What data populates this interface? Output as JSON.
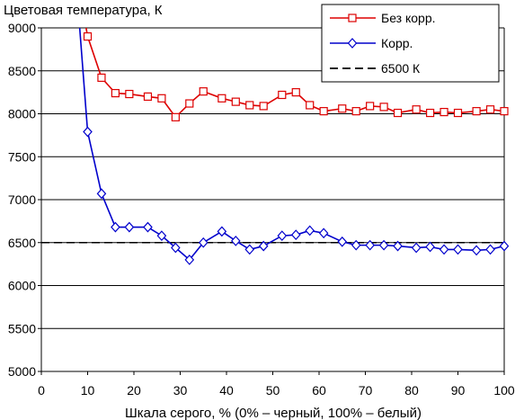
{
  "chart_data": {
    "type": "line",
    "ylabel": "Цветовая температура, К",
    "xlabel": "Шкала серого, % (0% – черный, 100% – белый)",
    "xlim": [
      0,
      100
    ],
    "ylim": [
      5000,
      9000
    ],
    "xticks": [
      "0",
      "10",
      "20",
      "30",
      "40",
      "50",
      "60",
      "70",
      "80",
      "90",
      "100"
    ],
    "yticks": [
      "5000",
      "5500",
      "6000",
      "6500",
      "7000",
      "7500",
      "8000",
      "8500",
      "9000"
    ],
    "grid": "horizontal",
    "legend_position": "top-right",
    "series": [
      {
        "name": "Без корр.",
        "color": "#dd0000",
        "marker": "square",
        "x": [
          10,
          13,
          16,
          19,
          23,
          26,
          29,
          32,
          35,
          39,
          42,
          45,
          48,
          52,
          55,
          58,
          61,
          65,
          68,
          71,
          74,
          77,
          81,
          84,
          87,
          90,
          94,
          97,
          100
        ],
        "values": [
          8900,
          8420,
          8240,
          8230,
          8200,
          8180,
          7960,
          8120,
          8260,
          8180,
          8140,
          8100,
          8090,
          8220,
          8250,
          8100,
          8030,
          8060,
          8030,
          8090,
          8080,
          8010,
          8050,
          8010,
          8020,
          8010,
          8030,
          8050,
          8030
        ]
      },
      {
        "name": "Корр.",
        "color": "#0000cc",
        "marker": "diamond",
        "x": [
          10,
          13,
          16,
          19,
          23,
          26,
          29,
          32,
          35,
          39,
          42,
          45,
          48,
          52,
          55,
          58,
          61,
          65,
          68,
          71,
          74,
          77,
          81,
          84,
          87,
          90,
          94,
          97,
          100
        ],
        "values": [
          7790,
          7070,
          6680,
          6680,
          6680,
          6580,
          6440,
          6300,
          6500,
          6630,
          6520,
          6420,
          6460,
          6580,
          6590,
          6640,
          6610,
          6510,
          6470,
          6470,
          6470,
          6460,
          6440,
          6450,
          6420,
          6420,
          6410,
          6420,
          6460
        ]
      },
      {
        "name": "6500 К",
        "color": "#000000",
        "style": "dashed",
        "x": [
          0,
          100
        ],
        "values": [
          6500,
          6500
        ]
      }
    ]
  }
}
